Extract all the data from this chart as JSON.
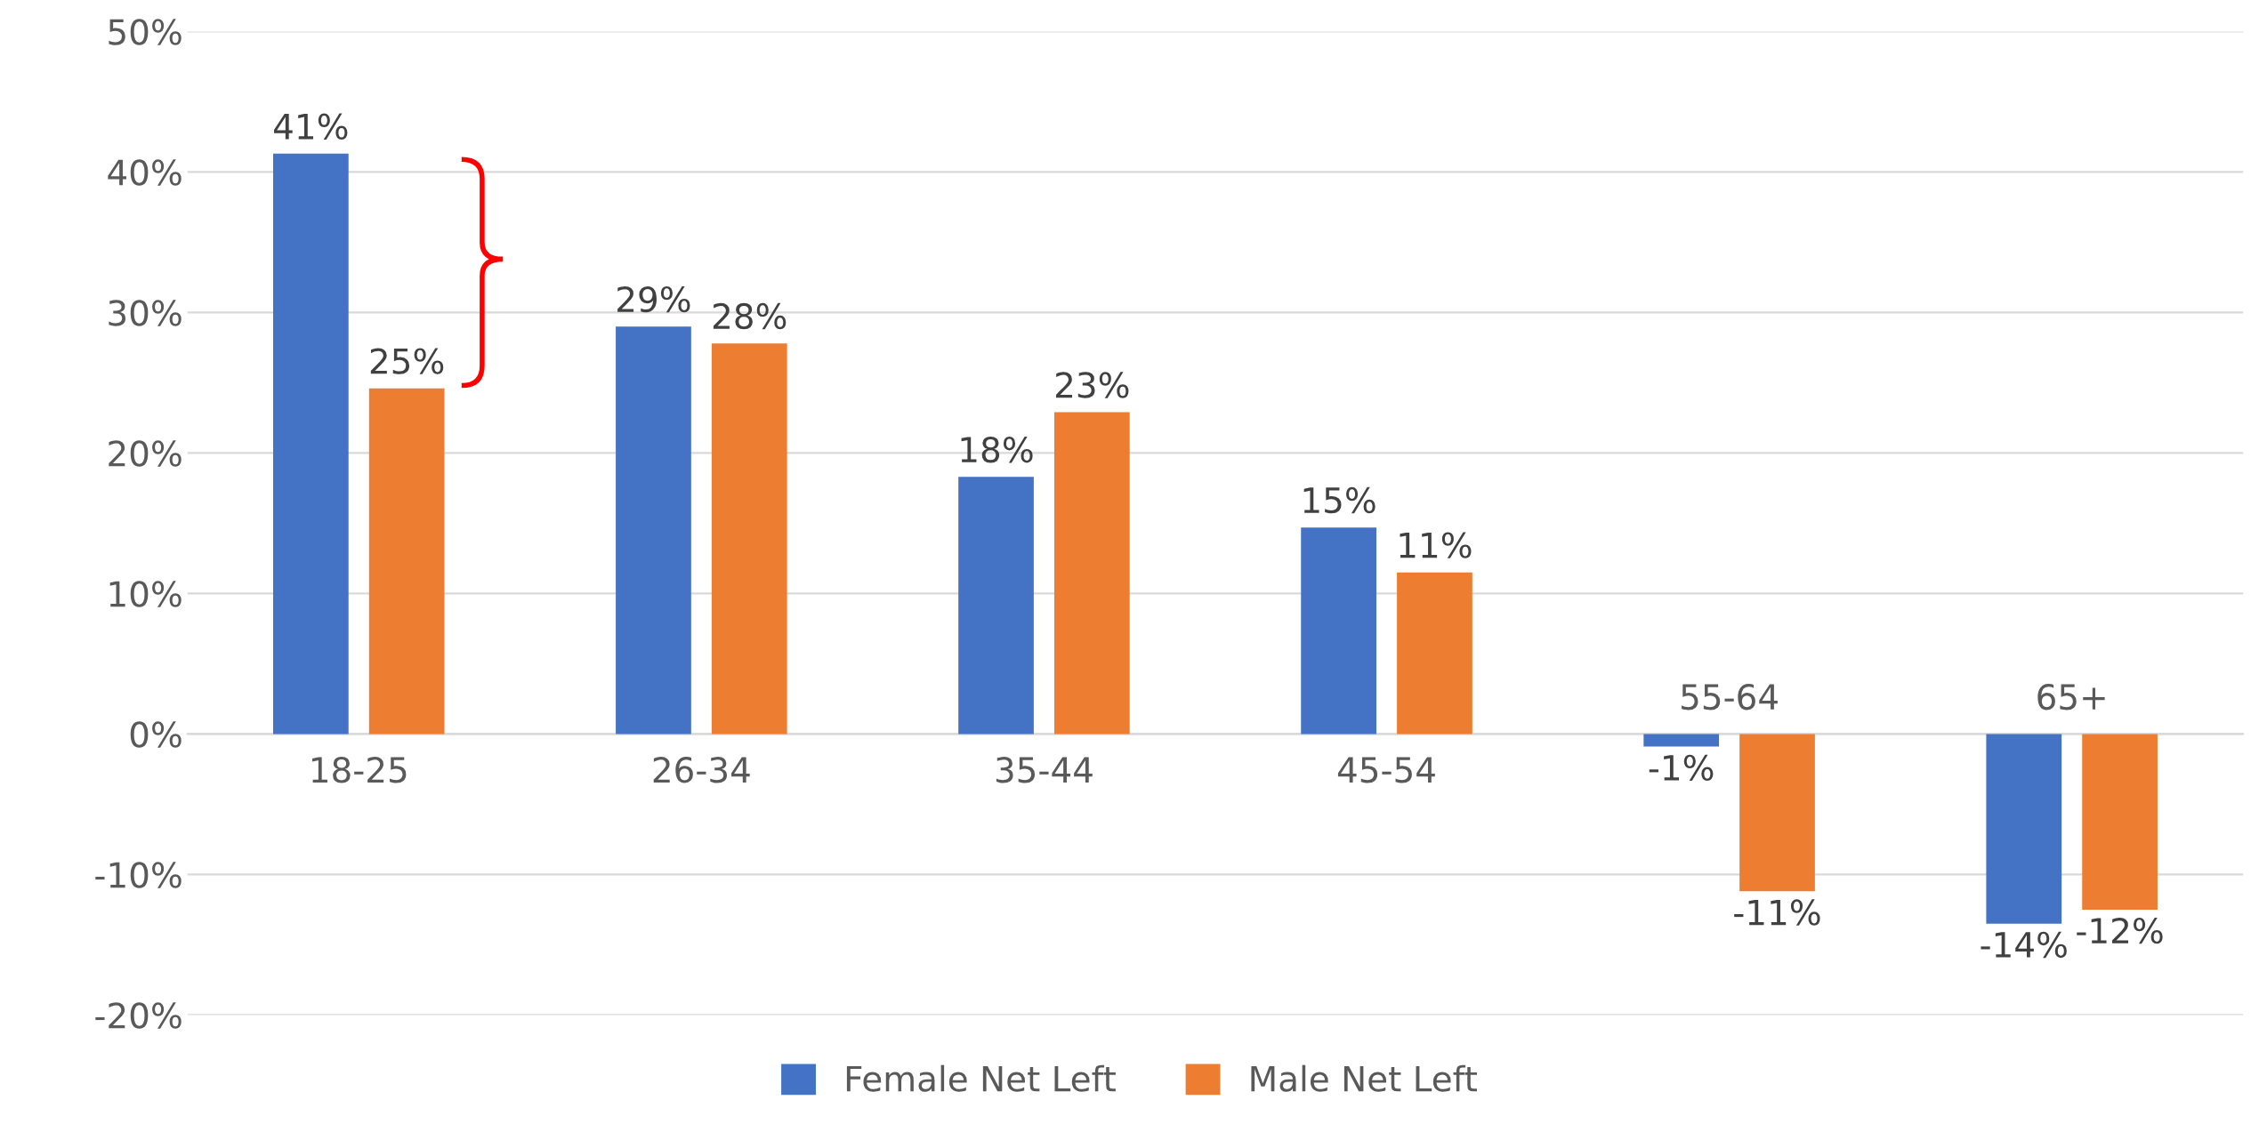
{
  "chart_data": {
    "type": "bar",
    "categories": [
      "18-25",
      "26-34",
      "35-44",
      "45-54",
      "55-64",
      "65+"
    ],
    "series": [
      {
        "name": "Female Net Left",
        "color": "#4472c4",
        "values": [
          41.3,
          29.0,
          18.3,
          14.7,
          -0.9,
          -13.5
        ],
        "value_labels": [
          "41%",
          "29%",
          "18%",
          "15%",
          "-1%",
          "-14%"
        ]
      },
      {
        "name": "Male Net Left",
        "color": "#ed7d31",
        "values": [
          24.6,
          27.8,
          22.9,
          11.5,
          -11.2,
          -12.5
        ],
        "value_labels": [
          "25%",
          "28%",
          "23%",
          "11%",
          "-11%",
          "-12%"
        ]
      }
    ],
    "ylim": [
      -20,
      50
    ],
    "yticks": [
      {
        "value": -20,
        "label": "-20%"
      },
      {
        "value": -10,
        "label": "-10%"
      },
      {
        "value": 0,
        "label": "0%"
      },
      {
        "value": 10,
        "label": "10%"
      },
      {
        "value": 20,
        "label": "20%"
      },
      {
        "value": 30,
        "label": "30%"
      },
      {
        "value": 40,
        "label": "40%"
      },
      {
        "value": 50,
        "label": "50%"
      }
    ],
    "grid": "y",
    "legend": "bottom"
  }
}
